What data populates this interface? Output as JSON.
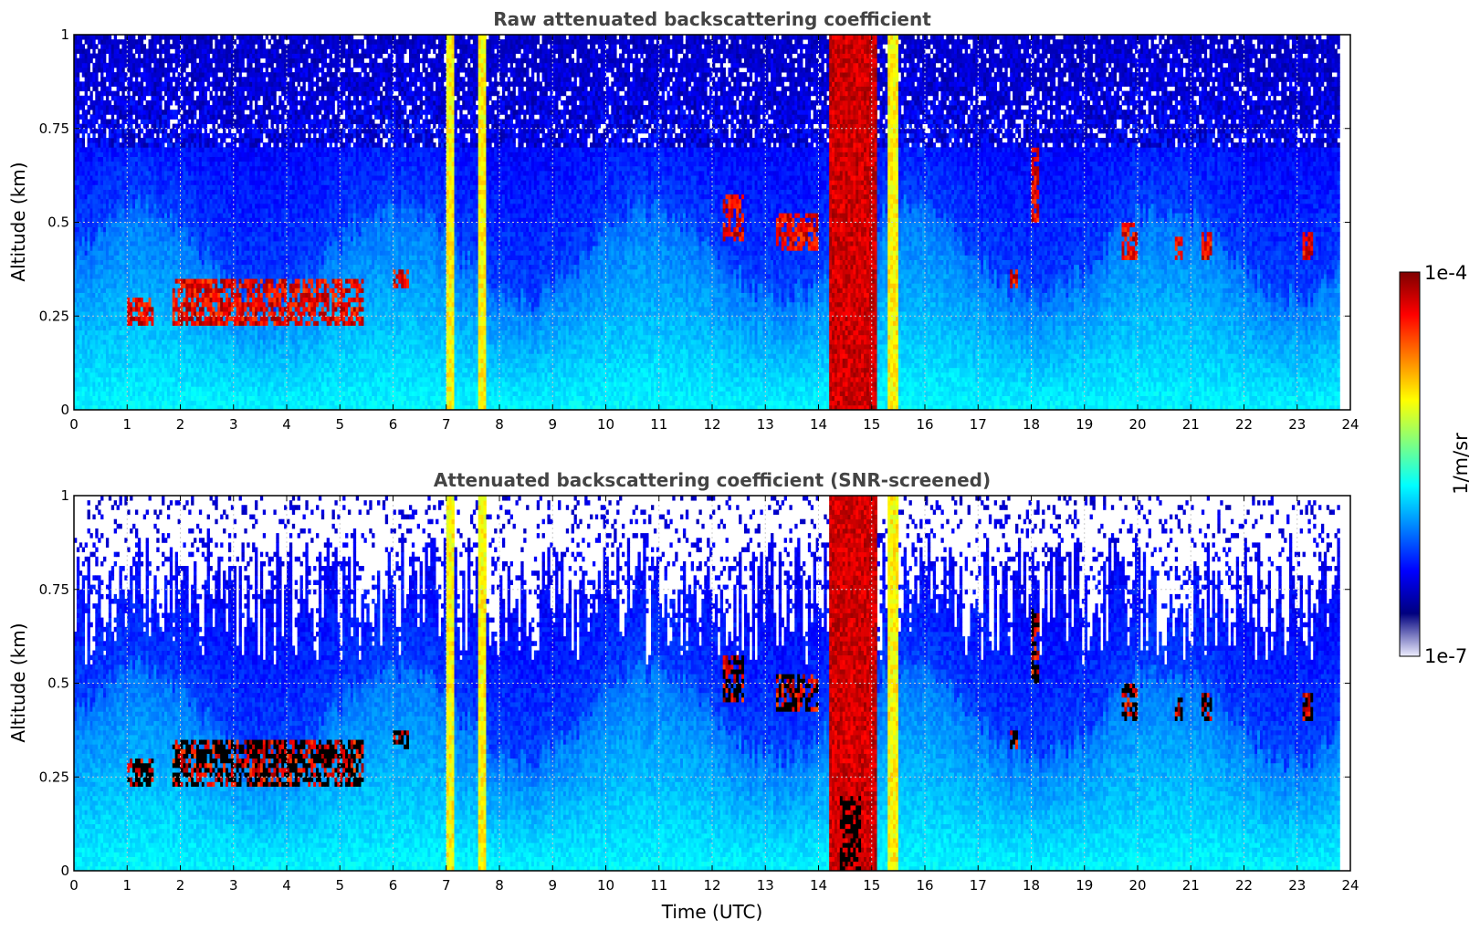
{
  "chart_data": [
    {
      "type": "heatmap",
      "title": "Raw attenuated backscattering coefficient",
      "xlabel": "",
      "ylabel": "Altitude (km)",
      "xlim": [
        0,
        24
      ],
      "ylim": [
        0,
        1
      ],
      "xticks": [
        "0",
        "1",
        "2",
        "3",
        "4",
        "5",
        "6",
        "7",
        "8",
        "9",
        "10",
        "11",
        "12",
        "13",
        "14",
        "15",
        "16",
        "17",
        "18",
        "19",
        "20",
        "21",
        "22",
        "23",
        "24"
      ],
      "yticks": [
        "0",
        "0.25",
        "0.5",
        "0.75",
        "1"
      ],
      "grid": true,
      "screened": false,
      "data_end_hour": 23.8,
      "features": {
        "boundary_layer_top_km": 0.45,
        "precipitation_bands_hours": [
          [
            7.0,
            7.15
          ],
          [
            7.6,
            7.75
          ],
          [
            14.2,
            15.1
          ],
          [
            15.3,
            15.5
          ]
        ],
        "cloud_segments": [
          {
            "start": 1.0,
            "end": 1.5,
            "base_km": 0.22,
            "top_km": 0.3
          },
          {
            "start": 1.85,
            "end": 5.45,
            "base_km": 0.22,
            "top_km": 0.35
          },
          {
            "start": 6.0,
            "end": 6.3,
            "base_km": 0.32,
            "top_km": 0.38
          },
          {
            "start": 12.2,
            "end": 12.6,
            "base_km": 0.45,
            "top_km": 0.58
          },
          {
            "start": 13.2,
            "end": 14.0,
            "base_km": 0.42,
            "top_km": 0.52
          },
          {
            "start": 17.6,
            "end": 17.75,
            "base_km": 0.33,
            "top_km": 0.38
          },
          {
            "start": 18.0,
            "end": 18.15,
            "base_km": 0.5,
            "top_km": 0.7
          },
          {
            "start": 19.7,
            "end": 20.0,
            "base_km": 0.4,
            "top_km": 0.5
          },
          {
            "start": 20.7,
            "end": 20.85,
            "base_km": 0.4,
            "top_km": 0.46
          },
          {
            "start": 21.2,
            "end": 21.4,
            "base_km": 0.4,
            "top_km": 0.48
          },
          {
            "start": 23.1,
            "end": 23.3,
            "base_km": 0.4,
            "top_km": 0.48
          }
        ]
      }
    },
    {
      "type": "heatmap",
      "title": "Attenuated backscattering coefficient (SNR-screened)",
      "xlabel": "Time (UTC)",
      "ylabel": "Altitude (km)",
      "xlim": [
        0,
        24
      ],
      "ylim": [
        0,
        1
      ],
      "xticks": [
        "0",
        "1",
        "2",
        "3",
        "4",
        "5",
        "6",
        "7",
        "8",
        "9",
        "10",
        "11",
        "12",
        "13",
        "14",
        "15",
        "16",
        "17",
        "18",
        "19",
        "20",
        "21",
        "22",
        "23",
        "24"
      ],
      "yticks": [
        "0",
        "0.25",
        "0.5",
        "0.75",
        "1"
      ],
      "grid": true,
      "screened": true,
      "data_end_hour": 23.8
    }
  ],
  "colorbar": {
    "label": "1/m/sr",
    "min_label": "1e-7",
    "max_label": "1e-4",
    "min_value": 1e-07,
    "max_value": 0.0001,
    "colormap": [
      "#EEEEFF",
      "#00007F",
      "#0000FF",
      "#0080FF",
      "#00FFFF",
      "#80FF80",
      "#FFFF00",
      "#FF8000",
      "#FF0000",
      "#7F0000"
    ]
  },
  "colors": {
    "saturated_cloud": "#000000",
    "grid": "#cccccc",
    "title": "#444444"
  }
}
